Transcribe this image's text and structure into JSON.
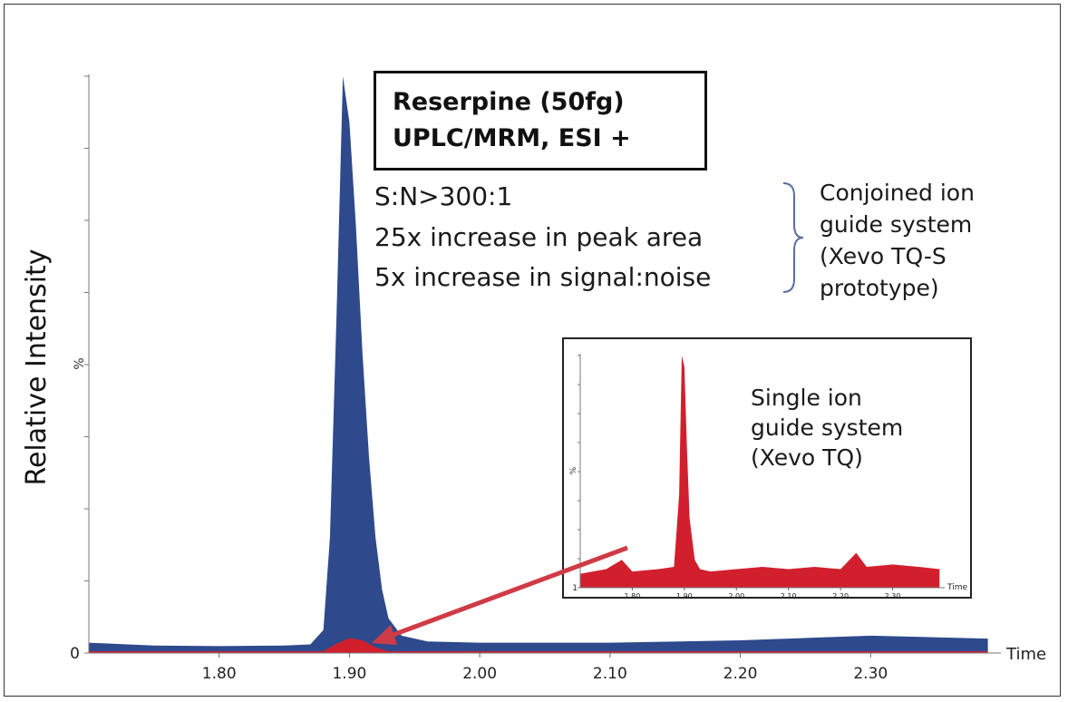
{
  "chart_data": [
    {
      "type": "area",
      "ylabel": "Relative Intensity",
      "y_unit_label": "%",
      "y_zero_label": "0",
      "xlabel": "Time",
      "xlim": [
        1.7,
        2.4
      ],
      "xticks": [
        "1.80",
        "1.90",
        "2.00",
        "2.10",
        "2.20",
        "2.30"
      ],
      "series": [
        {
          "name": "Conjoined ion guide system (Xevo TQ-S prototype)",
          "color": "#2e4a8c",
          "x": [
            1.7,
            1.75,
            1.8,
            1.85,
            1.87,
            1.88,
            1.885,
            1.89,
            1.895,
            1.9,
            1.905,
            1.91,
            1.915,
            1.92,
            1.925,
            1.93,
            1.94,
            1.96,
            2.0,
            2.1,
            2.2,
            2.3,
            2.39
          ],
          "y": [
            1.8,
            1.3,
            1.2,
            1.3,
            1.5,
            4,
            20,
            58,
            100,
            92,
            74,
            52,
            34,
            20,
            11,
            6,
            3,
            2,
            1.8,
            1.8,
            2.2,
            3.0,
            2.5
          ]
        },
        {
          "name": "Single ion guide system (Xevo TQ)",
          "color": "#d21f2d",
          "x": [
            1.7,
            1.88,
            1.89,
            1.9,
            1.91,
            1.92,
            1.93,
            2.39
          ],
          "y": [
            0.3,
            0.3,
            1.6,
            2.6,
            2.2,
            1.0,
            0.3,
            0.3
          ]
        }
      ]
    },
    {
      "type": "area",
      "title": "Single ion guide system (Xevo TQ)",
      "y_unit_label": "%",
      "y_zero_label": "1",
      "xlabel": "Time",
      "xlim": [
        1.7,
        2.4
      ],
      "xticks": [
        "1.80",
        "1.90",
        "2.00",
        "2.10",
        "2.20",
        "2.30"
      ],
      "series": [
        {
          "name": "Single ion guide system (Xevo TQ)",
          "color": "#d21f2d",
          "x": [
            1.7,
            1.75,
            1.78,
            1.8,
            1.85,
            1.88,
            1.89,
            1.895,
            1.9,
            1.905,
            1.91,
            1.92,
            1.93,
            1.95,
            2.0,
            2.05,
            2.1,
            2.15,
            2.2,
            2.23,
            2.25,
            2.3,
            2.35,
            2.39
          ],
          "y": [
            6,
            8,
            12,
            7,
            8,
            9,
            40,
            100,
            95,
            60,
            30,
            12,
            8,
            7,
            8,
            9,
            8,
            9,
            8,
            15,
            9,
            10,
            9,
            8
          ]
        }
      ]
    }
  ],
  "title_box": {
    "line1": "Reserpine (50fg)",
    "line2": "UPLC/MRM, ESI +"
  },
  "stats": [
    "S:N>300:1",
    "25x increase in peak area",
    "5x increase in signal:noise"
  ],
  "conjoined_note": [
    "Conjoined ion",
    "guide system",
    "(Xevo TQ-S",
    "prototype)"
  ],
  "single_note": [
    "Single ion",
    "guide system",
    "(Xevo TQ)"
  ],
  "colors": {
    "conjoined": "#2e4a8c",
    "single": "#d21f2d",
    "arrow": "#cf3b45"
  }
}
